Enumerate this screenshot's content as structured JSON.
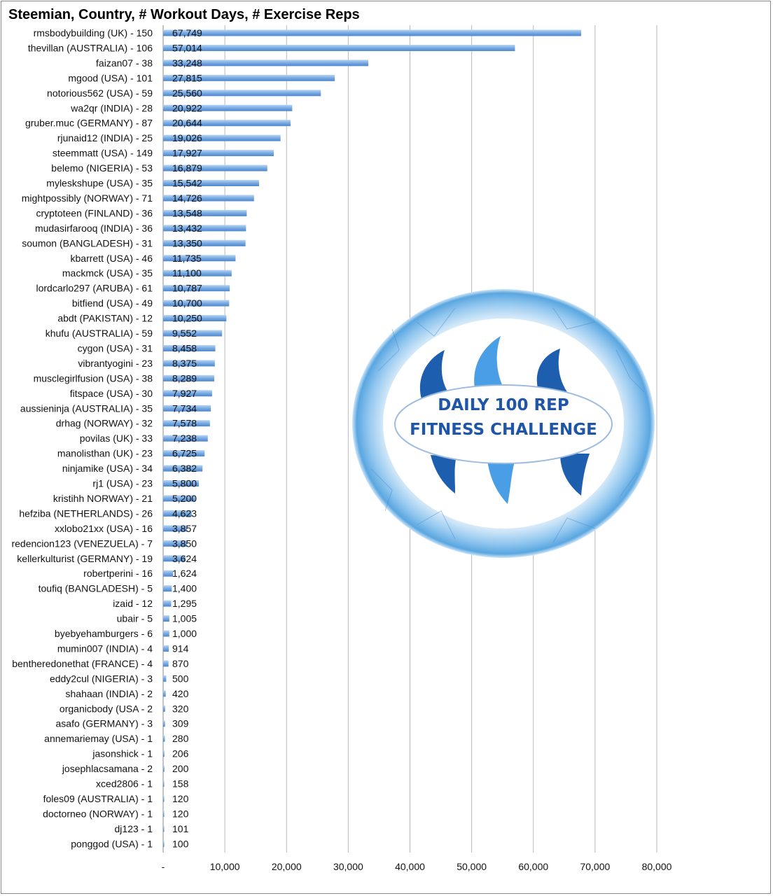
{
  "chart_data": {
    "type": "bar",
    "orientation": "horizontal",
    "title": "Steemian, Country, # Workout Days, # Exercise Reps",
    "xlim": [
      0,
      80000
    ],
    "x_ticks": [
      "-",
      "10,000",
      "20,000",
      "30,000",
      "40,000",
      "50,000",
      "60,000",
      "70,000",
      "80,000"
    ],
    "grid": true,
    "bar_color": "#6fa3dd",
    "categories": [
      "rmsbodybuilding (UK) - 150",
      "thevillan (AUSTRALIA) - 106",
      "faizan07 - 38",
      "mgood (USA) - 101",
      "notorious562 (USA) - 59",
      "wa2qr (INDIA) - 28",
      "gruber.muc (GERMANY) - 87",
      "rjunaid12 (INDIA) - 25",
      "steemmatt (USA) - 149",
      "belemo (NIGERIA) - 53",
      "myleskshupe (USA) - 35",
      "mightpossibly (NORWAY) - 71",
      "cryptoteen (FINLAND) - 36",
      "mudasirfarooq (INDIA) - 36",
      "soumon (BANGLADESH) - 31",
      "kbarrett (USA) - 46",
      "mackmck (USA) - 35",
      "lordcarlo297 (ARUBA) - 61",
      "bitfiend (USA) - 49",
      "abdt (PAKISTAN) - 12",
      "khufu (AUSTRALIA) - 59",
      "cygon (USA) - 31",
      "vibrantyogini - 23",
      "musclegirlfusion (USA) - 38",
      "fitspace (USA) - 30",
      "aussieninja (AUSTRALIA) - 35",
      "drhag (NORWAY) - 32",
      "povilas (UK) - 33",
      "manolisthan (UK) - 23",
      "ninjamike (USA) - 34",
      "rj1 (USA) - 23",
      "kristihh NORWAY) - 21",
      "hefziba (NETHERLANDS) - 26",
      "xxlobo21xx (USA) - 16",
      "redencion123 (VENEZUELA) - 7",
      "kellerkulturist (GERMANY) - 19",
      "robertperini - 16",
      "toufiq (BANGLADESH) - 5",
      "izaid - 12",
      "ubair - 5",
      "byebyehamburgers - 6",
      "mumin007 (INDIA) - 4",
      "bentheredonethat (FRANCE) - 4",
      "eddy2cul (NIGERIA) - 3",
      "shahaan (INDIA) - 2",
      "organicbody (USA - 2",
      "asafo (GERMANY) - 3",
      "annemariemay (USA) - 1",
      "jasonshick  - 1",
      "josephlacsamana - 2",
      "xced2806 - 1",
      "foles09 (AUSTRALIA) - 1",
      "doctorneo (NORWAY) - 1",
      "dj123 - 1",
      "ponggod (USA) - 1"
    ],
    "values": [
      67749,
      57014,
      33248,
      27815,
      25560,
      20922,
      20644,
      19026,
      17927,
      16879,
      15542,
      14726,
      13548,
      13432,
      13350,
      11735,
      11100,
      10787,
      10700,
      10250,
      9552,
      8458,
      8375,
      8289,
      7927,
      7734,
      7578,
      7238,
      6725,
      6382,
      5800,
      5200,
      4623,
      3857,
      3850,
      3624,
      1624,
      1400,
      1295,
      1005,
      1000,
      914,
      870,
      500,
      420,
      320,
      309,
      280,
      206,
      200,
      158,
      120,
      120,
      101,
      100
    ],
    "value_labels": [
      "67,749",
      "57,014",
      "33,248",
      "27,815",
      "25,560",
      "20,922",
      "20,644",
      "19,026",
      "17,927",
      "16,879",
      "15,542",
      "14,726",
      "13,548",
      "13,432",
      "13,350",
      "11,735",
      "11,100",
      "10,787",
      "10,700",
      "10,250",
      "9,552",
      "8,458",
      "8,375",
      "8,289",
      "7,927",
      "7,734",
      "7,578",
      "7,238",
      "6,725",
      "6,382",
      "5,800",
      "5,200",
      "4,623",
      "3,857",
      "3,850",
      "3,624",
      "1,624",
      "1,400",
      "1,295",
      "1,005",
      "1,000",
      "914",
      "870",
      "500",
      "420",
      "320",
      "309",
      "280",
      "206",
      "200",
      "158",
      "120",
      "120",
      "101",
      "100"
    ]
  },
  "badge": {
    "line1": "DAILY 100 REP",
    "line2": "FITNESS CHALLENGE",
    "ring_color": "#8ec5ee",
    "text_color": "#1f56a8"
  }
}
